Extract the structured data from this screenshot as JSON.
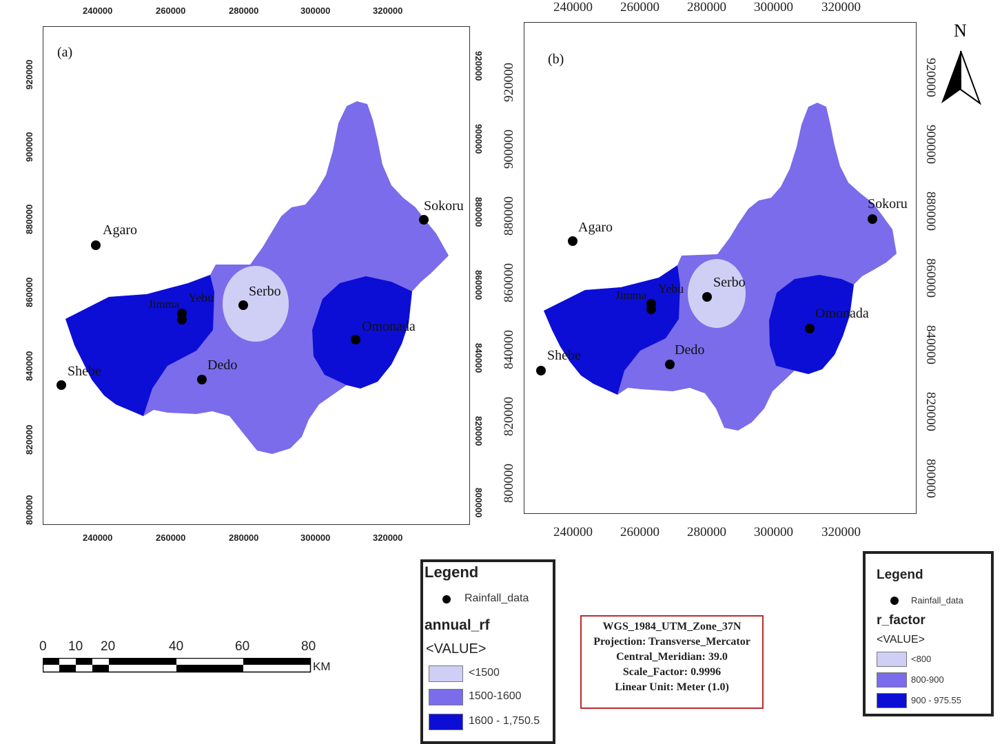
{
  "colors": {
    "low": "#cfcff5",
    "mid": "#7a6cea",
    "high": "#0c0ed6",
    "proj_border": "#c0282c"
  },
  "map_a": {
    "panel_label": "(a)",
    "x_ticks": [
      "240000",
      "260000",
      "280000",
      "300000",
      "320000"
    ],
    "y_ticks": [
      "920000",
      "900000",
      "880000",
      "860000",
      "840000",
      "820000",
      "800000"
    ]
  },
  "map_b": {
    "panel_label": "(b)",
    "x_ticks": [
      "240000",
      "260000",
      "280000",
      "300000",
      "320000"
    ],
    "y_ticks": [
      "920000",
      "900000",
      "880000",
      "860000",
      "840000",
      "820000",
      "800000"
    ],
    "north_label": "N"
  },
  "towns": {
    "agaro": "Agaro",
    "sokoru": "Sokoru",
    "serbo": "Serbo",
    "yebu": "Yebu",
    "jimma": "Jimma",
    "omonada": "Omonada",
    "dedo": "Dedo",
    "shebe": "Shebe"
  },
  "legend_a": {
    "title": "Legend",
    "point_label": "Rainfall_data",
    "field": "annual_rf",
    "value_header": "<VALUE>",
    "classes": [
      "<1500",
      "1500-1600",
      "1600 - 1,750.5"
    ]
  },
  "legend_b": {
    "title": "Legend",
    "point_label": "Rainfall_data",
    "field": "r_factor",
    "value_header": "<VALUE>",
    "classes": [
      "<800",
      "800-900",
      "900 - 975.55"
    ]
  },
  "projection": {
    "line1": "WGS_1984_UTM_Zone_37N",
    "line2": "Projection: Transverse_Mercator",
    "line3": "Central_Meridian: 39.0",
    "line4": "Scale_Factor: 0.9996",
    "line5": "Linear Unit: Meter (1.0)"
  },
  "scalebar": {
    "labels": [
      "0",
      "10",
      "20",
      "40",
      "60",
      "80"
    ],
    "unit": "KM"
  }
}
